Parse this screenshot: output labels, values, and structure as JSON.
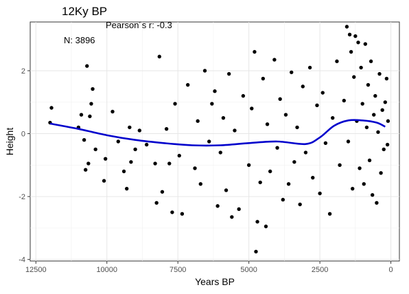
{
  "chart_data": {
    "type": "scatter",
    "title": "12Ky BP",
    "xlabel": "Years BP",
    "ylabel": "Height",
    "annotations": {
      "pearson": "Pearson´s r: -0.3",
      "n": "N: 3896"
    },
    "x_reversed": true,
    "xlim": [
      12700,
      -300
    ],
    "ylim": [
      -4.05,
      3.55
    ],
    "x_ticks": [
      12500,
      10000,
      7500,
      5000,
      2500,
      0
    ],
    "x_tick_labels": [
      "12500",
      "10000",
      "7500",
      "5000",
      "2500",
      "0"
    ],
    "y_ticks": [
      2,
      0,
      -2,
      -4
    ],
    "y_tick_labels": [
      "2",
      "0",
      "-2",
      "-4"
    ],
    "grid": true,
    "point_color": "#000000",
    "smooth_color": "#0000CC",
    "smooth": {
      "x": [
        12000,
        11000,
        10000,
        9000,
        8000,
        7000,
        6000,
        5000,
        4000,
        3000,
        2500,
        2000,
        1500,
        1000,
        500,
        200
      ],
      "y": [
        0.32,
        0.15,
        -0.05,
        -0.2,
        -0.3,
        -0.37,
        -0.37,
        -0.3,
        -0.25,
        -0.33,
        -0.12,
        0.25,
        0.42,
        0.42,
        0.35,
        0.22
      ]
    },
    "points": [
      [
        11950,
        0.82
      ],
      [
        12000,
        0.35
      ],
      [
        10700,
        2.15
      ],
      [
        10500,
        1.42
      ],
      [
        10550,
        0.95
      ],
      [
        10600,
        0.55
      ],
      [
        10800,
        -0.2
      ],
      [
        10650,
        -0.95
      ],
      [
        10900,
        0.6
      ],
      [
        11000,
        0.2
      ],
      [
        10750,
        -1.15
      ],
      [
        10400,
        -0.5
      ],
      [
        10100,
        -1.5
      ],
      [
        10050,
        -0.8
      ],
      [
        9800,
        0.7
      ],
      [
        9600,
        -0.25
      ],
      [
        9400,
        -1.2
      ],
      [
        9300,
        -1.75
      ],
      [
        9150,
        -0.9
      ],
      [
        9000,
        -0.5
      ],
      [
        9200,
        0.2
      ],
      [
        8850,
        0.1
      ],
      [
        8600,
        -0.35
      ],
      [
        8300,
        -0.95
      ],
      [
        8150,
        2.45
      ],
      [
        8250,
        -2.2
      ],
      [
        8050,
        -1.85
      ],
      [
        7900,
        0.15
      ],
      [
        7800,
        -0.95
      ],
      [
        7700,
        -2.5
      ],
      [
        7600,
        0.95
      ],
      [
        7450,
        -0.7
      ],
      [
        7350,
        -2.55
      ],
      [
        7150,
        1.55
      ],
      [
        6900,
        -1.1
      ],
      [
        6800,
        0.4
      ],
      [
        6700,
        -1.6
      ],
      [
        6550,
        2.0
      ],
      [
        6400,
        -0.25
      ],
      [
        6300,
        0.95
      ],
      [
        6200,
        1.35
      ],
      [
        6100,
        -2.3
      ],
      [
        6000,
        -0.6
      ],
      [
        5900,
        0.5
      ],
      [
        5800,
        -1.8
      ],
      [
        5700,
        1.9
      ],
      [
        5600,
        -2.65
      ],
      [
        5500,
        0.1
      ],
      [
        5350,
        -2.4
      ],
      [
        5200,
        1.2
      ],
      [
        5000,
        -1.0
      ],
      [
        4800,
        2.6
      ],
      [
        4900,
        0.8
      ],
      [
        4750,
        -3.75
      ],
      [
        4700,
        -2.8
      ],
      [
        4600,
        -1.55
      ],
      [
        4500,
        1.75
      ],
      [
        4400,
        -2.95
      ],
      [
        4350,
        0.3
      ],
      [
        4250,
        -1.2
      ],
      [
        4100,
        2.35
      ],
      [
        4000,
        -0.45
      ],
      [
        3900,
        1.1
      ],
      [
        3800,
        -2.1
      ],
      [
        3700,
        0.6
      ],
      [
        3600,
        -1.6
      ],
      [
        3500,
        1.95
      ],
      [
        3400,
        -0.9
      ],
      [
        3300,
        0.2
      ],
      [
        3200,
        -2.25
      ],
      [
        3100,
        1.5
      ],
      [
        3000,
        -0.6
      ],
      [
        2850,
        2.1
      ],
      [
        2750,
        -1.4
      ],
      [
        2600,
        0.9
      ],
      [
        2500,
        -1.9
      ],
      [
        2400,
        1.3
      ],
      [
        2300,
        -0.3
      ],
      [
        2150,
        -2.55
      ],
      [
        2050,
        0.5
      ],
      [
        1900,
        2.3
      ],
      [
        1800,
        -1.0
      ],
      [
        1650,
        1.05
      ],
      [
        1550,
        3.4
      ],
      [
        1500,
        -0.25
      ],
      [
        1450,
        3.15
      ],
      [
        1400,
        2.6
      ],
      [
        1350,
        -1.75
      ],
      [
        1300,
        1.8
      ],
      [
        1250,
        3.1
      ],
      [
        1200,
        0.4
      ],
      [
        1150,
        2.9
      ],
      [
        1100,
        -1.1
      ],
      [
        1050,
        2.1
      ],
      [
        1000,
        0.95
      ],
      [
        950,
        -1.6
      ],
      [
        900,
        2.85
      ],
      [
        850,
        0.2
      ],
      [
        800,
        1.55
      ],
      [
        750,
        -0.85
      ],
      [
        700,
        2.3
      ],
      [
        650,
        -1.95
      ],
      [
        600,
        0.6
      ],
      [
        550,
        1.2
      ],
      [
        500,
        -2.2
      ],
      [
        450,
        0.05
      ],
      [
        400,
        1.9
      ],
      [
        350,
        -1.25
      ],
      [
        300,
        0.75
      ],
      [
        250,
        -0.5
      ],
      [
        200,
        1.0
      ],
      [
        150,
        1.75
      ],
      [
        120,
        -0.35
      ],
      [
        100,
        0.4
      ]
    ]
  }
}
